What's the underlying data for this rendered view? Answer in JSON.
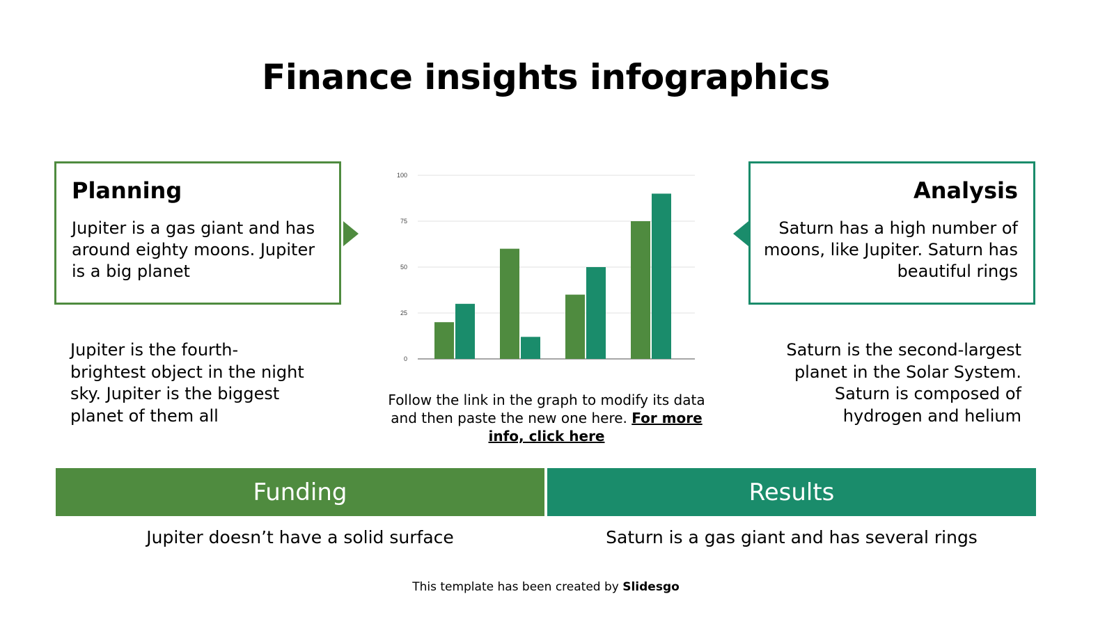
{
  "title": "Finance insights infographics",
  "planning": {
    "heading": "Planning",
    "text": "Jupiter is a gas giant and has around eighty moons. Jupiter is a big planet",
    "note": "Jupiter is the fourth-brightest object in the night sky. Jupiter is the biggest planet of them all"
  },
  "analysis": {
    "heading": "Analysis",
    "text": "Saturn has a high number of moons, like Jupiter. Saturn has beautiful rings",
    "note": "Saturn is the second-largest planet in the Solar System. Saturn is composed of hydrogen and helium"
  },
  "caption": {
    "text": "Follow the link in the graph to modify its data and then paste the new one here. ",
    "link": "For more info, click here"
  },
  "funding": {
    "label": "Funding",
    "text": "Jupiter doesn’t have a solid surface"
  },
  "results": {
    "label": "Results",
    "text": "Saturn is a gas giant and has several rings"
  },
  "credit": {
    "text": "This template has been created by ",
    "brand": "Slidesgo"
  },
  "colors": {
    "green": "#4f8b3f",
    "teal": "#1a8c6b"
  },
  "chart_data": {
    "type": "bar",
    "categories": [
      "",
      "",
      "",
      ""
    ],
    "series": [
      {
        "values": [
          20,
          60,
          35,
          75
        ],
        "color": "#4f8b3f"
      },
      {
        "values": [
          30,
          12,
          50,
          90
        ],
        "color": "#1a8c6b"
      }
    ],
    "yticks": [
      "0",
      "25",
      "50",
      "75",
      "100"
    ],
    "ylim": [
      0,
      100
    ],
    "grid": true,
    "legend": "none"
  }
}
